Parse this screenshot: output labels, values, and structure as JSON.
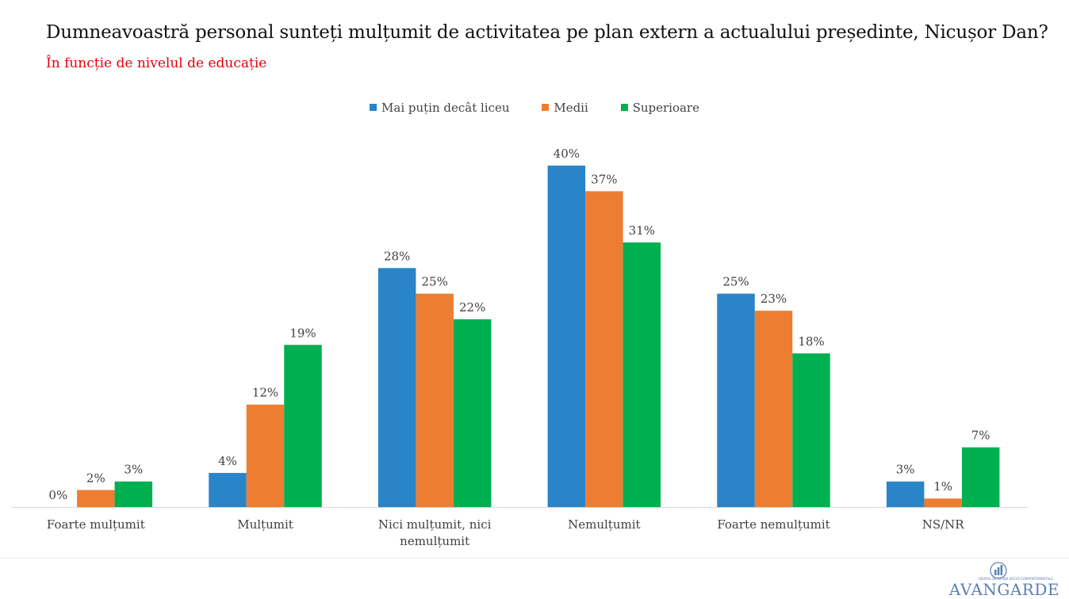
{
  "chart_data": {
    "type": "bar",
    "title": "Dumneavoastră personal sunteți mulțumit de activitatea pe plan extern a actualului președinte, Nicușor Dan?",
    "subtitle": "În funcție de nivelul de educație",
    "categories": [
      [
        "Foarte mulțumit"
      ],
      [
        "Mulțumit"
      ],
      [
        "Nici mulțumit, nici",
        "nemulțumit"
      ],
      [
        "Nemulțumit"
      ],
      [
        "Foarte nemulțumit"
      ],
      [
        "NS/NR"
      ]
    ],
    "series": [
      {
        "name": "Mai puțin decât liceu",
        "color": "#2a84c8",
        "values": [
          0,
          4,
          28,
          40,
          25,
          3
        ],
        "labels": [
          "0%",
          "4%",
          "28%",
          "40%",
          "25%",
          "3%"
        ]
      },
      {
        "name": "Medii",
        "color": "#ed7d31",
        "values": [
          2,
          12,
          25,
          37,
          23,
          1
        ],
        "labels": [
          "2%",
          "12%",
          "25%",
          "37%",
          "23%",
          "1%"
        ]
      },
      {
        "name": "Superioare",
        "color": "#00b050",
        "values": [
          3,
          19,
          22,
          31,
          18,
          7
        ],
        "labels": [
          "3%",
          "19%",
          "22%",
          "31%",
          "18%",
          "7%"
        ]
      }
    ],
    "ylim": [
      0,
      40
    ],
    "xlabel": "",
    "ylabel": "",
    "grid": false,
    "legend": "top-center"
  },
  "logo": {
    "tagline": "GRUPUL DE STUDII SOCIO-COMPORTAMENTALE",
    "name": "AVANGARDE"
  }
}
